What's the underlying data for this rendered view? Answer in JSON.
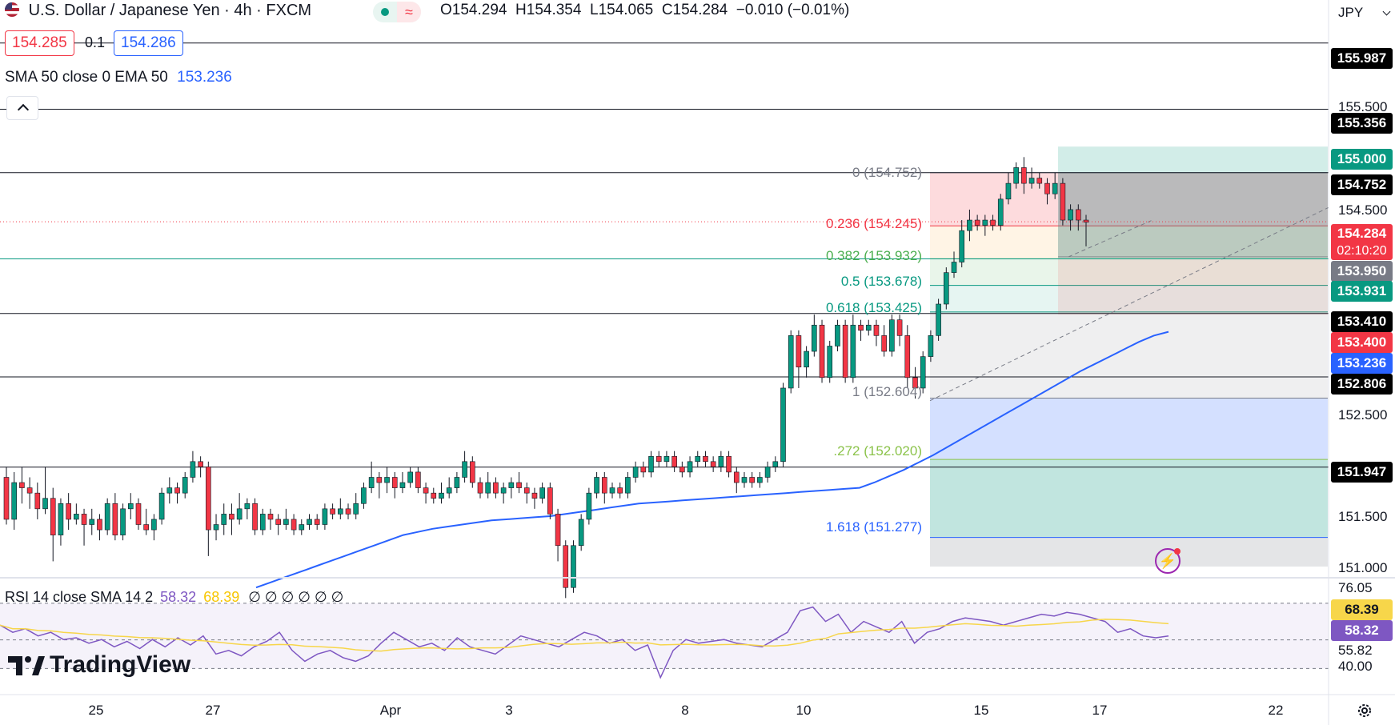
{
  "header": {
    "title": "U.S. Dollar / Japanese Yen · 4h · FXCM",
    "ohlc": {
      "open": "O154.294",
      "high": "H154.354",
      "low": "L154.065",
      "close": "C154.284",
      "change": "−0.010 (−0.01%)"
    }
  },
  "trade": {
    "sell": "154.285",
    "spread": "0.1",
    "buy": "154.286"
  },
  "indicator": {
    "label": "SMA 50 close 0 EMA 50",
    "value": "153.236"
  },
  "rsi_legend": {
    "label": "RSI 14 close SMA 14 2",
    "rsi": "58.32",
    "sma": "68.39",
    "zeros": "∅ ∅ ∅ ∅ ∅ ∅"
  },
  "currency": "JPY",
  "price_axis": {
    "ticks": [
      "155.500",
      "154.500",
      "152.500",
      "151.500",
      "151.000"
    ],
    "labels": [
      {
        "text": "155.987",
        "color": "#000000"
      },
      {
        "text": "155.356",
        "color": "#000000"
      },
      {
        "text": "155.000",
        "color": "#089981"
      },
      {
        "text": "154.752",
        "color": "#000000"
      },
      {
        "text": "154.284",
        "color": "#f23645"
      },
      {
        "text": "02:10:20",
        "color": "#f23645"
      },
      {
        "text": "153.950",
        "color": "#787b86"
      },
      {
        "text": "153.931",
        "color": "#089981"
      },
      {
        "text": "153.410",
        "color": "#000000"
      },
      {
        "text": "153.400",
        "color": "#f23645"
      },
      {
        "text": "153.236",
        "color": "#2962ff"
      },
      {
        "text": "152.806",
        "color": "#000000"
      },
      {
        "text": "151.947",
        "color": "#000000"
      }
    ]
  },
  "rsi_axis": {
    "ticks": [
      "76.05",
      "55.82",
      "40.00"
    ],
    "labels": [
      {
        "text": "68.39",
        "color": "#f7d64a"
      },
      {
        "text": "58.32",
        "color": "#7e57c2"
      }
    ]
  },
  "date_axis": [
    "25",
    "27",
    "Apr",
    "3",
    "8",
    "10",
    "15",
    "17",
    "22"
  ],
  "fib_labels": [
    {
      "text": "0 (154.752)",
      "color": "#787b86"
    },
    {
      "text": "0.236 (154.245)",
      "color": "#f23645"
    },
    {
      "text": "0.382 (153.932)",
      "color": "#4caf50"
    },
    {
      "text": "0.5 (153.678)",
      "color": "#089981"
    },
    {
      "text": "0.618 (153.425)",
      "color": "#089981"
    },
    {
      "text": "1 (152.604)",
      "color": "#787b86"
    },
    {
      "text": ".272 (152.020)",
      "color": "#8bc34a"
    },
    {
      "text": "1.618 (151.277)",
      "color": "#2962ff"
    }
  ],
  "logo": "TradingView",
  "chart_data": {
    "type": "candlestick",
    "title": "U.S. Dollar / Japanese Yen · 4h · FXCM",
    "price_range": [
      151.0,
      156.0
    ],
    "rsi_range": [
      30,
      80
    ],
    "candles": [
      [
        151.85,
        151.45,
        151.95,
        151.4
      ],
      [
        151.45,
        151.8,
        151.9,
        151.35
      ],
      [
        151.8,
        151.75,
        151.95,
        151.6
      ],
      [
        151.75,
        151.7,
        151.85,
        151.55
      ],
      [
        151.7,
        151.55,
        151.8,
        151.45
      ],
      [
        151.55,
        151.65,
        151.95,
        151.5
      ],
      [
        151.65,
        151.3,
        151.75,
        151.05
      ],
      [
        151.3,
        151.6,
        151.65,
        151.2
      ],
      [
        151.6,
        151.45,
        151.7,
        151.35
      ],
      [
        151.45,
        151.5,
        151.6,
        151.4
      ],
      [
        151.5,
        151.4,
        151.55,
        151.2
      ],
      [
        151.4,
        151.45,
        151.55,
        151.3
      ],
      [
        151.45,
        151.35,
        151.5,
        151.25
      ],
      [
        151.35,
        151.6,
        151.65,
        151.3
      ],
      [
        151.6,
        151.3,
        151.7,
        151.25
      ],
      [
        151.3,
        151.55,
        151.6,
        151.25
      ],
      [
        151.55,
        151.6,
        151.7,
        151.45
      ],
      [
        151.6,
        151.4,
        151.65,
        151.35
      ],
      [
        151.4,
        151.35,
        151.55,
        151.3
      ],
      [
        151.35,
        151.45,
        151.5,
        151.25
      ],
      [
        151.45,
        151.7,
        151.75,
        151.4
      ],
      [
        151.7,
        151.75,
        151.85,
        151.6
      ],
      [
        151.75,
        151.7,
        151.8,
        151.6
      ],
      [
        151.7,
        151.85,
        151.9,
        151.65
      ],
      [
        151.85,
        152.0,
        152.1,
        151.8
      ],
      [
        152.0,
        151.95,
        152.05,
        151.85
      ],
      [
        151.95,
        151.35,
        152.0,
        151.1
      ],
      [
        151.35,
        151.4,
        151.5,
        151.25
      ],
      [
        151.4,
        151.5,
        151.6,
        151.3
      ],
      [
        151.5,
        151.45,
        151.6,
        151.3
      ],
      [
        151.45,
        151.55,
        151.7,
        151.4
      ],
      [
        151.55,
        151.6,
        151.65,
        151.45
      ],
      [
        151.6,
        151.35,
        151.65,
        151.3
      ],
      [
        151.35,
        151.5,
        151.55,
        151.3
      ],
      [
        151.5,
        151.45,
        151.55,
        151.35
      ],
      [
        151.45,
        151.4,
        151.5,
        151.3
      ],
      [
        151.4,
        151.45,
        151.55,
        151.35
      ],
      [
        151.45,
        151.35,
        151.5,
        151.3
      ],
      [
        151.35,
        151.4,
        151.45,
        151.3
      ],
      [
        151.4,
        151.45,
        151.5,
        151.35
      ],
      [
        151.45,
        151.4,
        151.5,
        151.35
      ],
      [
        151.4,
        151.55,
        151.6,
        151.35
      ],
      [
        151.55,
        151.5,
        151.6,
        151.45
      ],
      [
        151.5,
        151.55,
        151.65,
        151.45
      ],
      [
        151.55,
        151.5,
        151.6,
        151.45
      ],
      [
        151.5,
        151.6,
        151.7,
        151.45
      ],
      [
        151.6,
        151.75,
        151.8,
        151.55
      ],
      [
        151.75,
        151.85,
        152.0,
        151.7
      ],
      [
        151.85,
        151.8,
        151.9,
        151.65
      ],
      [
        151.8,
        151.85,
        151.95,
        151.7
      ],
      [
        151.85,
        151.75,
        151.9,
        151.65
      ],
      [
        151.75,
        151.8,
        151.9,
        151.7
      ],
      [
        151.8,
        151.9,
        151.95,
        151.75
      ],
      [
        151.9,
        151.75,
        151.95,
        151.7
      ],
      [
        151.75,
        151.7,
        151.8,
        151.6
      ],
      [
        151.7,
        151.65,
        151.75,
        151.6
      ],
      [
        151.65,
        151.7,
        151.8,
        151.6
      ],
      [
        151.7,
        151.75,
        151.85,
        151.65
      ],
      [
        151.75,
        151.85,
        151.9,
        151.7
      ],
      [
        151.85,
        152.0,
        152.1,
        151.8
      ],
      [
        152.0,
        151.8,
        152.05,
        151.75
      ],
      [
        151.8,
        151.7,
        151.85,
        151.65
      ],
      [
        151.7,
        151.8,
        151.9,
        151.65
      ],
      [
        151.8,
        151.7,
        151.85,
        151.65
      ],
      [
        151.7,
        151.75,
        151.8,
        151.6
      ],
      [
        151.75,
        151.8,
        151.85,
        151.65
      ],
      [
        151.8,
        151.75,
        151.9,
        151.7
      ],
      [
        151.75,
        151.7,
        151.8,
        151.6
      ],
      [
        151.7,
        151.65,
        151.75,
        151.55
      ],
      [
        151.65,
        151.75,
        151.8,
        151.6
      ],
      [
        151.75,
        151.5,
        151.8,
        151.45
      ],
      [
        151.5,
        151.2,
        151.55,
        151.05
      ],
      [
        151.2,
        150.8,
        151.25,
        150.7
      ],
      [
        150.8,
        151.2,
        151.25,
        150.75
      ],
      [
        151.2,
        151.45,
        151.5,
        151.15
      ],
      [
        151.45,
        151.7,
        151.75,
        151.4
      ],
      [
        151.7,
        151.85,
        151.9,
        151.65
      ],
      [
        151.85,
        151.7,
        151.9,
        151.6
      ],
      [
        151.7,
        151.75,
        151.8,
        151.65
      ],
      [
        151.75,
        151.7,
        151.8,
        151.65
      ],
      [
        151.7,
        151.85,
        151.9,
        151.65
      ],
      [
        151.85,
        151.95,
        152.0,
        151.8
      ],
      [
        151.95,
        151.9,
        152.0,
        151.85
      ],
      [
        151.9,
        152.05,
        152.1,
        151.85
      ],
      [
        152.05,
        152.0,
        152.1,
        151.95
      ],
      [
        152.0,
        152.05,
        152.1,
        151.95
      ],
      [
        152.05,
        151.95,
        152.1,
        151.9
      ],
      [
        151.95,
        151.9,
        152.0,
        151.85
      ],
      [
        151.9,
        152.0,
        152.05,
        151.85
      ],
      [
        152.0,
        152.05,
        152.1,
        151.95
      ],
      [
        152.05,
        152.0,
        152.1,
        151.95
      ],
      [
        152.0,
        151.95,
        152.05,
        151.9
      ],
      [
        151.95,
        152.05,
        152.1,
        151.9
      ],
      [
        152.05,
        151.9,
        152.1,
        151.85
      ],
      [
        151.9,
        151.8,
        151.95,
        151.7
      ],
      [
        151.8,
        151.85,
        151.9,
        151.75
      ],
      [
        151.85,
        151.8,
        151.9,
        151.75
      ],
      [
        151.8,
        151.85,
        151.9,
        151.75
      ],
      [
        151.85,
        151.95,
        152.0,
        151.8
      ],
      [
        151.95,
        152.0,
        152.05,
        151.9
      ],
      [
        152.0,
        152.7,
        152.75,
        151.95
      ],
      [
        152.7,
        153.2,
        153.25,
        152.65
      ],
      [
        153.2,
        152.9,
        153.25,
        152.7
      ],
      [
        152.9,
        153.05,
        153.1,
        152.8
      ],
      [
        153.05,
        153.3,
        153.4,
        153.0
      ],
      [
        153.3,
        152.8,
        153.35,
        152.75
      ],
      [
        152.8,
        153.1,
        153.15,
        152.75
      ],
      [
        153.1,
        153.3,
        153.35,
        153.05
      ],
      [
        153.3,
        152.8,
        153.35,
        152.75
      ],
      [
        152.8,
        153.3,
        153.4,
        152.75
      ],
      [
        153.3,
        153.25,
        153.35,
        153.15
      ],
      [
        153.25,
        153.3,
        153.35,
        153.2
      ],
      [
        153.3,
        153.2,
        153.35,
        153.1
      ],
      [
        153.2,
        153.05,
        153.3,
        153.0
      ],
      [
        153.05,
        153.35,
        153.4,
        153.0
      ],
      [
        153.35,
        153.2,
        153.4,
        153.1
      ],
      [
        153.2,
        152.8,
        153.3,
        152.7
      ],
      [
        152.8,
        152.7,
        152.9,
        152.6
      ],
      [
        152.7,
        153.0,
        153.05,
        152.65
      ],
      [
        153.0,
        153.2,
        153.25,
        152.95
      ],
      [
        153.2,
        153.5,
        153.55,
        153.15
      ],
      [
        153.5,
        153.8,
        153.85,
        153.45
      ],
      [
        153.8,
        153.9,
        154.0,
        153.75
      ],
      [
        153.9,
        154.2,
        154.3,
        153.85
      ],
      [
        154.2,
        154.3,
        154.4,
        154.1
      ],
      [
        154.3,
        154.25,
        154.35,
        154.2
      ],
      [
        154.25,
        154.3,
        154.35,
        154.15
      ],
      [
        154.3,
        154.25,
        154.35,
        154.2
      ],
      [
        154.25,
        154.5,
        154.55,
        154.2
      ],
      [
        154.5,
        154.65,
        154.75,
        154.45
      ],
      [
        154.65,
        154.8,
        154.85,
        154.6
      ],
      [
        154.8,
        154.65,
        154.9,
        154.55
      ],
      [
        154.65,
        154.7,
        154.8,
        154.6
      ],
      [
        154.7,
        154.65,
        154.75,
        154.6
      ],
      [
        154.65,
        154.55,
        154.7,
        154.45
      ],
      [
        154.55,
        154.65,
        154.75,
        154.5
      ],
      [
        154.65,
        154.3,
        154.7,
        154.25
      ],
      [
        154.3,
        154.4,
        154.45,
        154.2
      ],
      [
        154.4,
        154.3,
        154.45,
        154.2
      ],
      [
        154.3,
        154.28,
        154.35,
        154.05
      ]
    ],
    "ema50": [
      150.8,
      150.85,
      150.9,
      150.95,
      151.0,
      151.05,
      151.1,
      151.15,
      151.2,
      151.25,
      151.3,
      151.33,
      151.36,
      151.38,
      151.4,
      151.42,
      151.44,
      151.45,
      151.46,
      151.47,
      151.48,
      151.5,
      151.52,
      151.54,
      151.56,
      151.58,
      151.6,
      151.61,
      151.62,
      151.63,
      151.64,
      151.65,
      151.66,
      151.67,
      151.68,
      151.69,
      151.7,
      151.71,
      151.72,
      151.73,
      151.74,
      151.75,
      151.8,
      151.86,
      151.92,
      151.99,
      152.06,
      152.14,
      152.22,
      152.3,
      152.38,
      152.46,
      152.54,
      152.62,
      152.7,
      152.78,
      152.86,
      152.93,
      153.0,
      153.07,
      153.14,
      153.2,
      153.236
    ],
    "rsi": [
      64,
      60,
      62,
      58,
      60,
      56,
      57,
      54,
      56,
      52,
      55,
      51,
      56,
      52,
      57,
      53,
      58,
      48,
      50,
      47,
      52,
      55,
      60,
      50,
      44,
      48,
      50,
      46,
      44,
      47,
      54,
      60,
      56,
      52,
      54,
      50,
      57,
      52,
      50,
      48,
      53,
      58,
      56,
      54,
      52,
      56,
      60,
      58,
      54,
      56,
      50,
      53,
      35,
      50,
      56,
      54,
      55,
      56,
      54,
      53,
      52,
      56,
      60,
      72,
      74,
      66,
      70,
      60,
      66,
      63,
      60,
      66,
      54,
      60,
      62,
      66,
      68,
      67,
      66,
      64,
      66,
      68,
      70,
      69,
      71,
      70,
      68,
      66,
      60,
      62,
      58,
      57,
      58
    ]
  }
}
